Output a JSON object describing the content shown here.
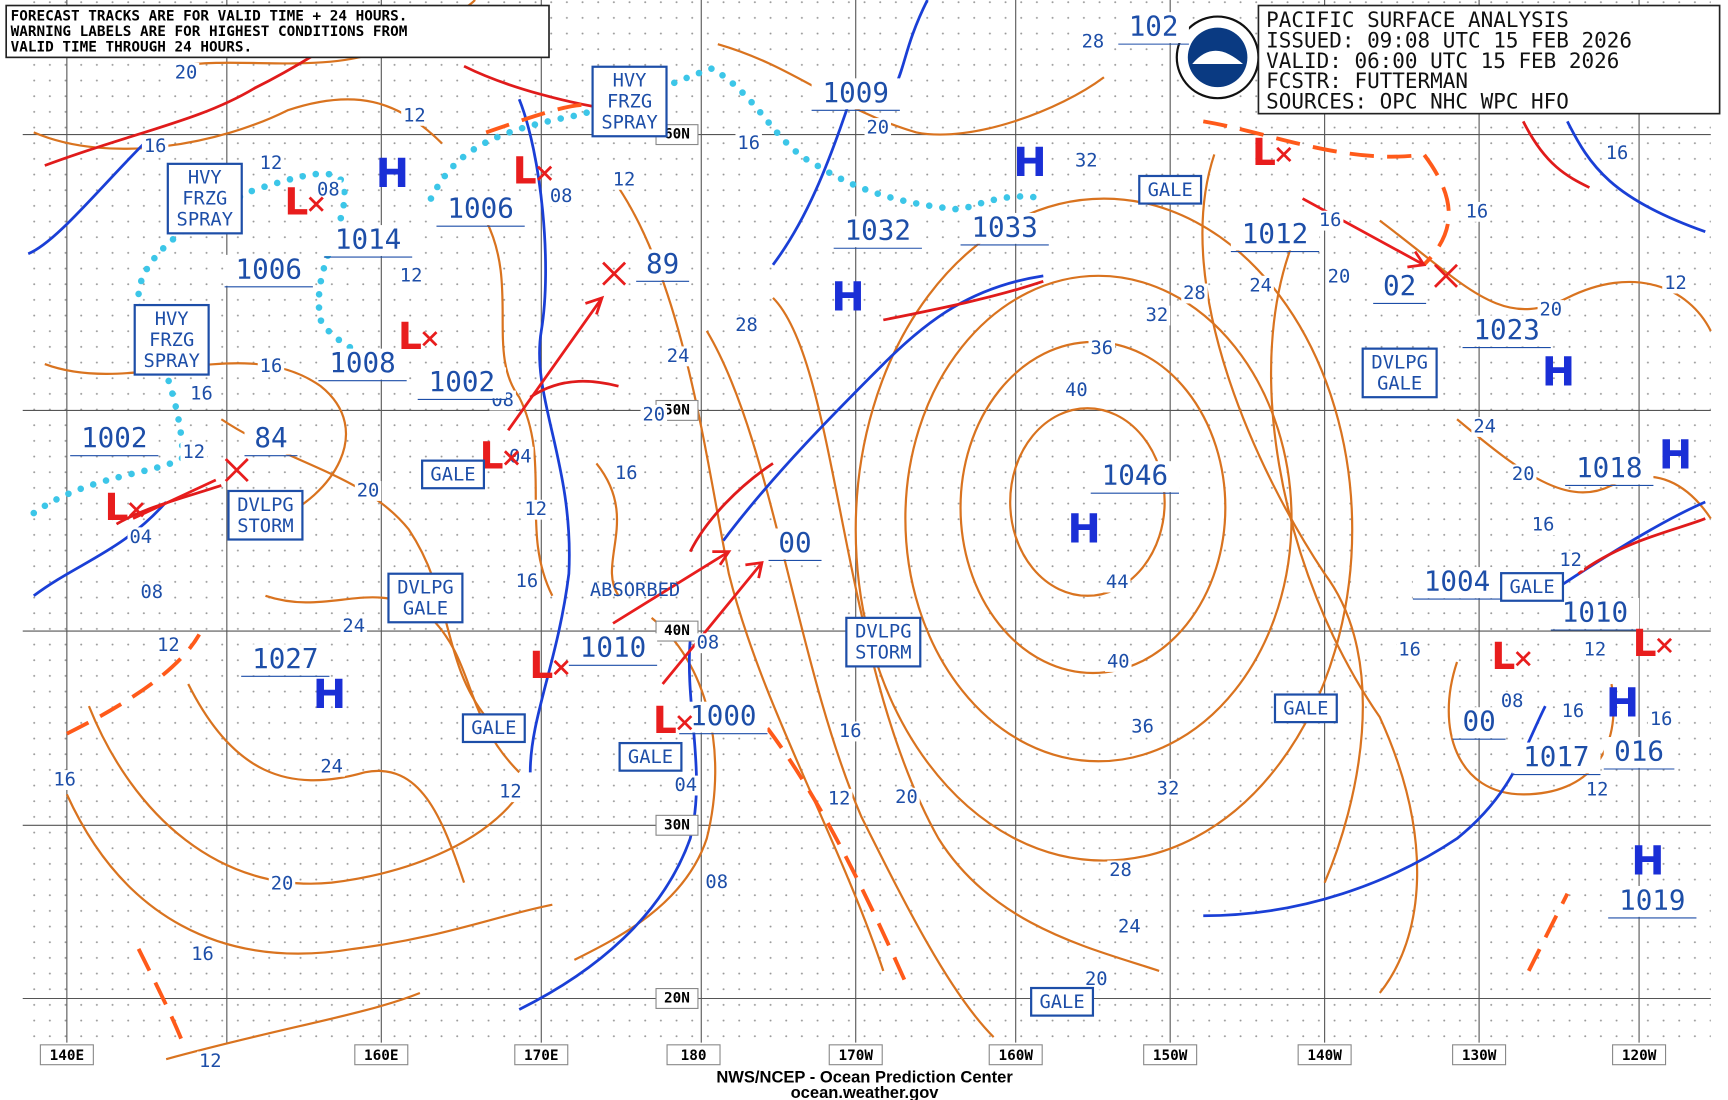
{
  "notice": {
    "lines": [
      "FORECAST TRACKS ARE FOR VALID TIME + 24 HOURS.",
      "WARNING LABELS ARE FOR HIGHEST CONDITIONS FROM",
      "VALID TIME THROUGH 24 HOURS."
    ]
  },
  "header": {
    "lines": [
      "PACIFIC SURFACE ANALYSIS",
      "ISSUED: 09:08 UTC 15 FEB 2026",
      "VALID:  06:00 UTC 15 FEB 2026",
      "FCSTR:  FUTTERMAN",
      "SOURCES: OPC NHC WPC HFO"
    ]
  },
  "longitudes": [
    "140E",
    "160E",
    "170E",
    "180",
    "170W",
    "160W",
    "150W",
    "140W",
    "130W",
    "120W"
  ],
  "latitudes": [
    "60N",
    "50N",
    "40N",
    "30N",
    "20N"
  ],
  "pressure_centers": [
    "1009",
    "1006",
    "1014",
    "1006",
    "1008",
    "1002",
    "1002",
    "84",
    "89",
    "1032",
    "1033",
    "1012",
    "02",
    "1023",
    "1046",
    "00",
    "1018",
    "1004",
    "1010",
    "1027",
    "1010",
    "1000",
    "00",
    "1017",
    "016",
    "1019",
    "102"
  ],
  "highs": [
    "H",
    "H",
    "H",
    "H",
    "H",
    "H",
    "H",
    "H",
    "H"
  ],
  "lows": [
    "L",
    "L",
    "L",
    "L",
    "L",
    "L",
    "L",
    "L",
    "L",
    "L"
  ],
  "warnings": [
    [
      "HVY",
      "FRZG",
      "SPRAY"
    ],
    [
      "HVY",
      "FRZG",
      "SPRAY"
    ],
    [
      "HVY",
      "FRZG",
      "SPRAY"
    ],
    [
      "GALE"
    ],
    [
      "GALE"
    ],
    [
      "GALE"
    ],
    [
      "GALE"
    ],
    [
      "GALE"
    ],
    [
      "GALE"
    ],
    [
      "GALE"
    ],
    [
      "DVLPG",
      "GALE"
    ],
    [
      "DVLPG",
      "GALE"
    ],
    [
      "DVLPG",
      "STORM"
    ],
    [
      "DVLPG",
      "STORM"
    ]
  ],
  "absorbed": "ABSORBED",
  "isobar_labels": [
    "20",
    "16",
    "12",
    "08",
    "12",
    "12",
    "16",
    "16",
    "12",
    "04",
    "08",
    "12",
    "20",
    "24",
    "24",
    "20",
    "16",
    "12",
    "16",
    "08",
    "12",
    "16",
    "20",
    "28",
    "32",
    "28",
    "24",
    "20",
    "16",
    "12",
    "16",
    "08",
    "04",
    "08",
    "04",
    "08",
    "12",
    "16",
    "12",
    "20",
    "32",
    "36",
    "40",
    "44",
    "40",
    "36",
    "32",
    "28",
    "24",
    "20",
    "28",
    "24",
    "16",
    "20",
    "16",
    "16",
    "12",
    "20",
    "24",
    "20",
    "16",
    "12",
    "16",
    "12",
    "16",
    "16",
    "12",
    "08"
  ],
  "footer": {
    "source": "NWS/NCEP - Ocean Prediction Center",
    "url": "ocean.weather.gov"
  }
}
